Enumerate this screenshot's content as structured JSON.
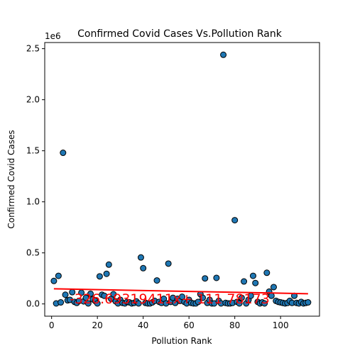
{
  "chart_data": {
    "type": "scatter",
    "title": "Confirmed Covid Cases Vs.Pollution Rank",
    "xlabel": "Pollution Rank",
    "ylabel": "Confirmed Covid Cases",
    "scale_label": "1e6",
    "xlim": [
      -3,
      117
    ],
    "ylim": [
      -0.12,
      2.56
    ],
    "xticks": [
      0,
      20,
      40,
      60,
      80,
      100
    ],
    "xtick_labels": [
      "0",
      "20",
      "40",
      "60",
      "80",
      "100"
    ],
    "yticks": [
      0.0,
      0.5,
      1.0,
      1.5,
      2.0,
      2.5
    ],
    "ytick_labels": [
      "0.0",
      "0.5",
      "1.0",
      "1.5",
      "2.0",
      "2.5"
    ],
    "grid": false,
    "colors": {
      "points": "#1f77b4",
      "point_edge": "#000000",
      "trend": "#ff0000"
    },
    "points": {
      "x": [
        1,
        2,
        3,
        4,
        5,
        6,
        7,
        8,
        9,
        10,
        11,
        12,
        13,
        14,
        15,
        16,
        17,
        18,
        19,
        20,
        21,
        22,
        23,
        24,
        25,
        26,
        27,
        28,
        29,
        30,
        31,
        32,
        33,
        34,
        35,
        36,
        37,
        38,
        39,
        40,
        41,
        42,
        43,
        44,
        45,
        46,
        47,
        48,
        49,
        50,
        51,
        52,
        53,
        54,
        55,
        56,
        57,
        58,
        59,
        60,
        61,
        62,
        63,
        64,
        65,
        66,
        67,
        68,
        69,
        70,
        71,
        72,
        73,
        74,
        75,
        76,
        77,
        78,
        79,
        80,
        81,
        82,
        83,
        84,
        85,
        86,
        87,
        88,
        89,
        90,
        91,
        92,
        93,
        94,
        95,
        96,
        97,
        98,
        99,
        100,
        101,
        102,
        103,
        104,
        105,
        106,
        107,
        108,
        109,
        110,
        111,
        112
      ],
      "y": [
        0.225,
        0.005,
        0.275,
        0.015,
        1.48,
        0.09,
        0.035,
        0.04,
        0.115,
        0.02,
        0.01,
        0.03,
        0.11,
        0.025,
        0.06,
        0.005,
        0.1,
        0.045,
        0.03,
        0.005,
        0.27,
        0.09,
        0.08,
        0.295,
        0.385,
        0.05,
        0.095,
        0.025,
        0.005,
        0.04,
        0.01,
        0.005,
        0.02,
        0.015,
        0.005,
        0.01,
        0.025,
        0.005,
        0.455,
        0.35,
        0.01,
        0.005,
        0.005,
        0.015,
        0.03,
        0.23,
        0.02,
        0.01,
        0.05,
        0.005,
        0.395,
        0.02,
        0.06,
        0.01,
        0.05,
        0.03,
        0.07,
        0.02,
        0.005,
        0.04,
        0.01,
        0.005,
        0.005,
        0.02,
        0.095,
        0.06,
        0.25,
        0.01,
        0.04,
        0.005,
        0.005,
        0.255,
        0.03,
        0.005,
        2.44,
        0.01,
        0.005,
        0.005,
        0.01,
        0.82,
        0.02,
        0.005,
        0.06,
        0.22,
        0.005,
        0.04,
        0.08,
        0.275,
        0.205,
        0.02,
        0.005,
        0.015,
        0.005,
        0.305,
        0.12,
        0.08,
        0.165,
        0.03,
        0.02,
        0.015,
        0.01,
        0.005,
        0.01,
        0.03,
        0.01,
        0.08,
        0.01,
        0.005,
        0.02,
        0.005,
        0.01,
        0.015
      ]
    },
    "trendline": {
      "x": [
        1,
        112
      ],
      "y": [
        0.148,
        0.1
      ]
    },
    "annotation": "-326.69319411x+ 111 78173"
  }
}
